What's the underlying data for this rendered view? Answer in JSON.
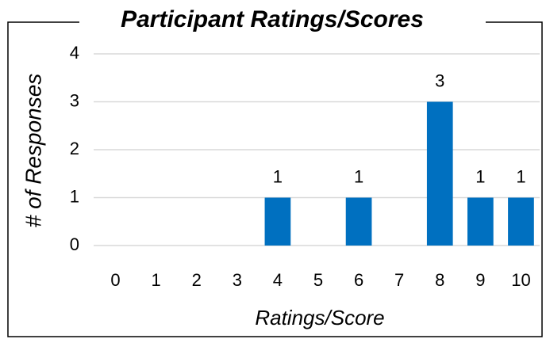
{
  "chart_data": {
    "type": "bar",
    "title": "Participant Ratings/Scores",
    "x_label": "Ratings/Score",
    "y_label": "# of Responses",
    "categories": [
      "0",
      "1",
      "2",
      "3",
      "4",
      "5",
      "6",
      "7",
      "8",
      "9",
      "10"
    ],
    "values": [
      0,
      0,
      0,
      0,
      1,
      0,
      1,
      0,
      3,
      1,
      1
    ],
    "color": "#0070c0",
    "ylim": [
      0,
      4
    ],
    "yticks": [
      0,
      1,
      2,
      3,
      4
    ],
    "grid": true
  }
}
